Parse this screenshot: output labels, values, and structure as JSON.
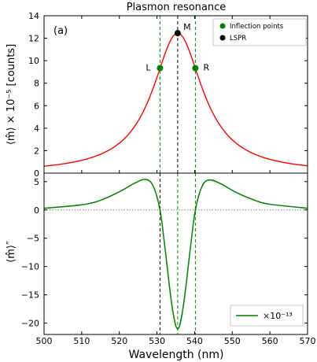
{
  "chart_data": {
    "type": "line",
    "title": "Plasmon resonance",
    "xlabel": "Wavelength (nm)",
    "xlim": [
      500,
      570
    ],
    "xticks": [
      500,
      510,
      520,
      530,
      540,
      550,
      560,
      570
    ],
    "panels": [
      {
        "panel_label": "(a)",
        "ylabel": "⟨m̂⟩ × 10⁻⁵ [counts]",
        "ylim": [
          0,
          14
        ],
        "yticks": [
          0,
          2,
          4,
          6,
          8,
          10,
          12,
          14
        ],
        "curve": {
          "color": "#ff0000",
          "model": "lorentzian",
          "peak_x": 535.5,
          "peak_y": 12.45,
          "hwhm": 8.1
        },
        "annotations": [
          {
            "label": "L",
            "x": 530.8,
            "y": 9.34,
            "color": "#008000"
          },
          {
            "label": "M",
            "x": 535.5,
            "y": 12.45,
            "color": "#000000"
          },
          {
            "label": "R",
            "x": 540.2,
            "y": 9.34,
            "color": "#008000"
          }
        ],
        "vertical_lines": [
          {
            "x": 530.8,
            "color": "#008000",
            "style": "dashed"
          },
          {
            "x": 535.5,
            "color": "#000000",
            "style": "dashed"
          },
          {
            "x": 540.2,
            "color": "#008000",
            "style": "dashed"
          }
        ],
        "legend": {
          "placement": "top-right",
          "items": [
            {
              "label": "Inflection points",
              "color": "#008000",
              "marker": "circle"
            },
            {
              "label": "LSPR",
              "color": "#000000",
              "marker": "circle"
            }
          ]
        }
      },
      {
        "ylabel": "⟨m̂⟩″",
        "ylim": [
          -22,
          6.5
        ],
        "yticks": [
          5,
          0,
          -5,
          -10,
          -15,
          -20
        ],
        "curve": {
          "color": "#008000",
          "model": "second-derivative-of-lorentzian",
          "points": [
            [
              500,
              0.3
            ],
            [
              510,
              0.9
            ],
            [
              515,
              1.7
            ],
            [
              520,
              3.2
            ],
            [
              524,
              4.7
            ],
            [
              527,
              5.4
            ],
            [
              529,
              4.2
            ],
            [
              530.8,
              0
            ],
            [
              532,
              -6
            ],
            [
              534,
              -17
            ],
            [
              535.5,
              -21.0
            ],
            [
              537,
              -17
            ],
            [
              539,
              -6
            ],
            [
              540.2,
              0
            ],
            [
              542,
              4.2
            ],
            [
              544,
              5.3
            ],
            [
              547,
              4.6
            ],
            [
              551,
              3.1
            ],
            [
              556,
              1.7
            ],
            [
              560,
              1.0
            ],
            [
              570,
              0.3
            ]
          ]
        },
        "zero_line": {
          "y": 0,
          "style": "dotted",
          "color": "#808080"
        },
        "vertical_lines": [
          {
            "x": 530.8,
            "color": "#000000",
            "style": "dashed"
          },
          {
            "x": 535.5,
            "color": "#008000",
            "style": "dashed"
          },
          {
            "x": 540.2,
            "color": "#008000",
            "style": "dashed"
          }
        ],
        "legend": {
          "placement": "bottom-right",
          "items": [
            {
              "label": "×10⁻¹³",
              "color": "#008000",
              "marker": "line"
            }
          ]
        }
      }
    ]
  }
}
